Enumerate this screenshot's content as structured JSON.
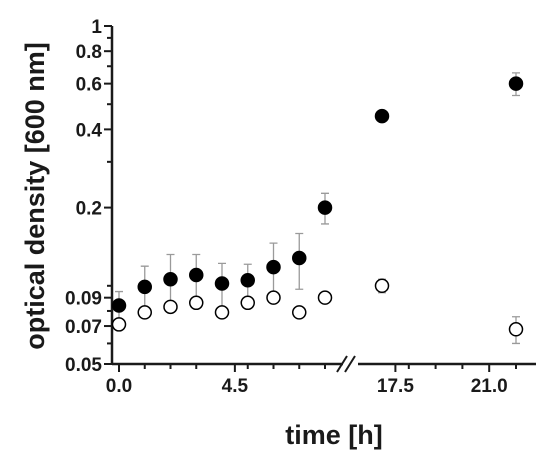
{
  "chart_data": {
    "type": "scatter",
    "title": "",
    "xlabel": "time [h]",
    "ylabel": "optical density [600 nm]",
    "y_scale": "log",
    "ylim": [
      0.05,
      1
    ],
    "x_axis_break": true,
    "x_ticks": [
      {
        "value": 0,
        "label": "0.0"
      },
      {
        "value": 4.5,
        "label": "4.5"
      },
      {
        "value": 17.5,
        "label": "17.5"
      },
      {
        "value": 21,
        "label": "21.0"
      }
    ],
    "y_ticks": [
      {
        "value": 0.05,
        "label": "0.05"
      },
      {
        "value": 0.07,
        "label": "0.07"
      },
      {
        "value": 0.09,
        "label": "0.09"
      },
      {
        "value": 0.2,
        "label": "0.2"
      },
      {
        "value": 0.4,
        "label": "0.4"
      },
      {
        "value": 0.6,
        "label": "0.6"
      },
      {
        "value": 0.8,
        "label": "0.8"
      },
      {
        "value": 1,
        "label": "1"
      }
    ],
    "series": [
      {
        "marker": "filled-circle",
        "points": [
          {
            "x": 0,
            "y": 0.084,
            "err": 0.011
          },
          {
            "x": 1,
            "y": 0.099,
            "err": 0.02
          },
          {
            "x": 2,
            "y": 0.106,
            "err": 0.026
          },
          {
            "x": 3,
            "y": 0.11,
            "err": 0.022
          },
          {
            "x": 4,
            "y": 0.102,
            "err": 0.02
          },
          {
            "x": 5,
            "y": 0.105,
            "err": 0.016
          },
          {
            "x": 6,
            "y": 0.118,
            "err": 0.028
          },
          {
            "x": 7,
            "y": 0.128,
            "err": 0.031
          },
          {
            "x": 8,
            "y": 0.2,
            "err": 0.027
          },
          {
            "x": 17,
            "y": 0.45,
            "err": 0
          },
          {
            "x": 22,
            "y": 0.6,
            "err": 0.06
          }
        ]
      },
      {
        "marker": "open-circle",
        "points": [
          {
            "x": 0,
            "y": 0.071,
            "err": 0
          },
          {
            "x": 1,
            "y": 0.079,
            "err": 0
          },
          {
            "x": 2,
            "y": 0.083,
            "err": 0
          },
          {
            "x": 3,
            "y": 0.086,
            "err": 0
          },
          {
            "x": 4,
            "y": 0.079,
            "err": 0
          },
          {
            "x": 5,
            "y": 0.086,
            "err": 0
          },
          {
            "x": 6,
            "y": 0.09,
            "err": 0
          },
          {
            "x": 7,
            "y": 0.079,
            "err": 0
          },
          {
            "x": 8,
            "y": 0.09,
            "err": 0
          },
          {
            "x": 17,
            "y": 0.1,
            "err": 0.006
          },
          {
            "x": 22,
            "y": 0.068,
            "err": 0.008
          }
        ]
      }
    ]
  }
}
